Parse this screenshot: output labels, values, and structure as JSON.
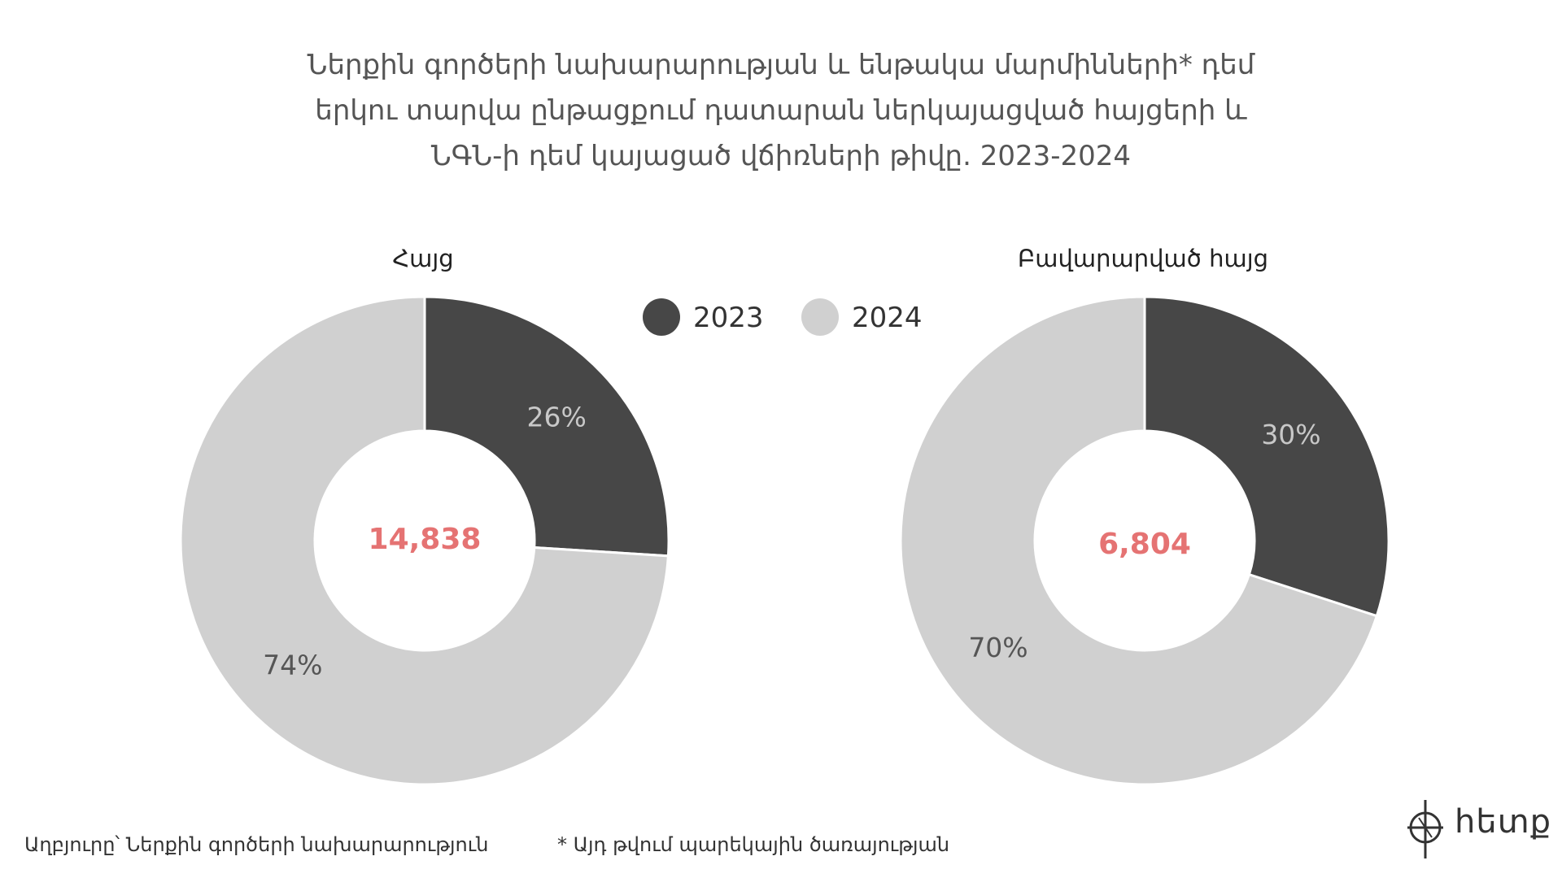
{
  "title_lines": [
    "Ներքին գործերի նախարարության և ենթակա մարմինների* դեմ",
    "երկու տարվա ընթացքում դատարան ներկայացված հայցերի և",
    "ՆԳՆ-ի դեմ կայացած վճիռների թիվը. 2023-2024"
  ],
  "legend": [
    {
      "label": "2023",
      "color": "#474747"
    },
    {
      "label": "2024",
      "color": "#d0d0d0"
    }
  ],
  "chart_data": [
    {
      "type": "pie",
      "title": "Հայց",
      "center_value": "14,838",
      "slices": [
        {
          "series": "2023",
          "value": 26,
          "label": "26%"
        },
        {
          "series": "2024",
          "value": 74,
          "label": "74%"
        }
      ]
    },
    {
      "type": "pie",
      "title": "Բավարարված հայց",
      "center_value": "6,804",
      "slices": [
        {
          "series": "2023",
          "value": 30,
          "label": "30%"
        },
        {
          "series": "2024",
          "value": 70,
          "label": "70%"
        }
      ]
    }
  ],
  "colors": {
    "series_2023": "#474747",
    "series_2024": "#d0d0d0",
    "label_on_dark": "#c8c8c8",
    "label_on_light": "#555555",
    "center_value": "#e57373"
  },
  "footer": {
    "source": "Աղբյուրը՝ Ներքին գործերի նախարարություն",
    "note": "* Այդ թվում պարեկային ծառայության"
  },
  "logo": {
    "text": "hետք",
    "icon": "compass-logo-icon"
  }
}
